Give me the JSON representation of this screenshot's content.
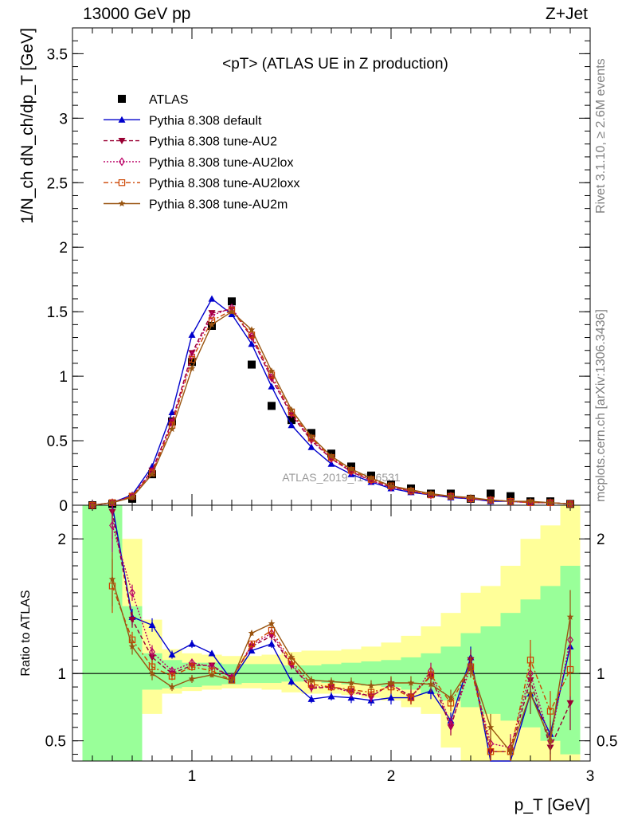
{
  "header": {
    "left": "13000 GeV pp",
    "right": "Z+Jet"
  },
  "side_labels": {
    "rivet": "Rivet 3.1.10, ≥ 2.6M events",
    "mcplots": "mcplots.cern.ch [arXiv:1306.3436]"
  },
  "watermark": "ATLAS_2019_I1736531",
  "chart_data": [
    {
      "type": "scatter",
      "title": "<pT> (ATLAS UE in Z production)",
      "ylabel": "1/N_ch dN_ch/dp_T [GeV]",
      "xlim": [
        0.4,
        3.0
      ],
      "ylim": [
        0,
        3.7
      ],
      "yticks": [
        0,
        0.5,
        1,
        1.5,
        2,
        2.5,
        3,
        3.5
      ],
      "ytick_labels": [
        "0",
        "0.5",
        "1",
        "1.5",
        "2",
        "2.5",
        "3",
        "3.5"
      ],
      "legend_position": "top-left",
      "x": [
        0.5,
        0.6,
        0.7,
        0.8,
        0.9,
        1.0,
        1.1,
        1.2,
        1.3,
        1.4,
        1.5,
        1.6,
        1.7,
        1.8,
        1.9,
        2.0,
        2.1,
        2.2,
        2.3,
        2.4,
        2.5,
        2.6,
        2.7,
        2.8,
        2.9
      ],
      "series": [
        {
          "name": "ATLAS",
          "style": "data",
          "marker": "square",
          "color": "#000000",
          "values": [
            0.0,
            0.01,
            0.05,
            0.24,
            0.65,
            1.11,
            1.39,
            1.58,
            1.09,
            0.77,
            0.66,
            0.56,
            0.4,
            0.3,
            0.23,
            0.16,
            0.13,
            0.09,
            0.09,
            0.05,
            0.09,
            0.07,
            0.03,
            0.03,
            0.01
          ]
        },
        {
          "name": "Pythia 8.308 default",
          "style": "solid",
          "marker": "triangle-up",
          "color": "#0000cc",
          "values": [
            0.0,
            0.02,
            0.08,
            0.3,
            0.72,
            1.32,
            1.6,
            1.48,
            1.25,
            0.92,
            0.62,
            0.45,
            0.32,
            0.24,
            0.18,
            0.13,
            0.1,
            0.08,
            0.06,
            0.05,
            0.03,
            0.03,
            0.02,
            0.02,
            0.01
          ]
        },
        {
          "name": "Pythia 8.308 tune-AU2",
          "style": "dashed",
          "marker": "triangle-down",
          "color": "#990033",
          "values": [
            0.0,
            0.02,
            0.07,
            0.27,
            0.65,
            1.18,
            1.49,
            1.52,
            1.3,
            0.98,
            0.7,
            0.5,
            0.36,
            0.26,
            0.19,
            0.14,
            0.11,
            0.08,
            0.07,
            0.05,
            0.04,
            0.03,
            0.02,
            0.02,
            0.01
          ]
        },
        {
          "name": "Pythia 8.308 tune-AU2lox",
          "style": "dotted",
          "marker": "diamond-open",
          "color": "#bb0066",
          "values": [
            0.0,
            0.02,
            0.07,
            0.26,
            0.64,
            1.16,
            1.47,
            1.53,
            1.31,
            0.99,
            0.71,
            0.51,
            0.36,
            0.26,
            0.19,
            0.14,
            0.11,
            0.08,
            0.07,
            0.05,
            0.04,
            0.03,
            0.02,
            0.02,
            0.01
          ]
        },
        {
          "name": "Pythia 8.308 tune-AU2loxx",
          "style": "dashdot",
          "marker": "square-open",
          "color": "#cc4400",
          "values": [
            0.0,
            0.02,
            0.07,
            0.25,
            0.62,
            1.13,
            1.43,
            1.51,
            1.32,
            1.01,
            0.72,
            0.52,
            0.37,
            0.27,
            0.2,
            0.15,
            0.11,
            0.08,
            0.07,
            0.05,
            0.04,
            0.03,
            0.02,
            0.02,
            0.01
          ]
        },
        {
          "name": "Pythia 8.308 tune-AU2m",
          "style": "solid",
          "marker": "star",
          "color": "#995511",
          "values": [
            0.0,
            0.02,
            0.06,
            0.24,
            0.59,
            1.06,
            1.4,
            1.5,
            1.36,
            1.04,
            0.74,
            0.53,
            0.38,
            0.28,
            0.21,
            0.15,
            0.12,
            0.09,
            0.07,
            0.06,
            0.04,
            0.03,
            0.03,
            0.02,
            0.01
          ]
        }
      ]
    },
    {
      "type": "scatter",
      "title": "",
      "xlabel": "p_T [GeV]",
      "ylabel": "Ratio to ATLAS",
      "xlim": [
        0.4,
        3.0
      ],
      "ylim": [
        0.35,
        2.25
      ],
      "xticks": [
        1,
        2,
        3
      ],
      "xtick_labels": [
        "1",
        "2",
        "3"
      ],
      "yticks": [
        0.5,
        1,
        2
      ],
      "ytick_labels": [
        "0.5",
        "1",
        "2"
      ],
      "reference_line": 1,
      "bands": {
        "edges": [
          0.45,
          0.55,
          0.65,
          0.75,
          0.85,
          0.95,
          1.05,
          1.15,
          1.25,
          1.35,
          1.45,
          1.55,
          1.65,
          1.75,
          1.85,
          1.95,
          2.05,
          2.15,
          2.25,
          2.35,
          2.45,
          2.55,
          2.65,
          2.75,
          2.85,
          2.95
        ],
        "green": [
          [
            0.35,
            2.25
          ],
          [
            0.35,
            2.25
          ],
          [
            0.35,
            1.5
          ],
          [
            0.88,
            1.15
          ],
          [
            0.89,
            1.1
          ],
          [
            0.9,
            1.08
          ],
          [
            0.91,
            1.08
          ],
          [
            0.92,
            1.07
          ],
          [
            0.93,
            1.07
          ],
          [
            0.93,
            1.07
          ],
          [
            0.94,
            1.06
          ],
          [
            0.94,
            1.06
          ],
          [
            0.93,
            1.07
          ],
          [
            0.92,
            1.08
          ],
          [
            0.91,
            1.09
          ],
          [
            0.9,
            1.1
          ],
          [
            0.88,
            1.12
          ],
          [
            0.85,
            1.15
          ],
          [
            0.8,
            1.2
          ],
          [
            0.75,
            1.3
          ],
          [
            0.7,
            1.35
          ],
          [
            0.65,
            1.45
          ],
          [
            0.6,
            1.55
          ],
          [
            0.5,
            1.65
          ],
          [
            0.4,
            1.8
          ]
        ],
        "yellow": [
          [
            0.35,
            2.25
          ],
          [
            0.35,
            2.25
          ],
          [
            0.35,
            2.0
          ],
          [
            0.7,
            1.4
          ],
          [
            0.85,
            1.18
          ],
          [
            0.87,
            1.15
          ],
          [
            0.88,
            1.14
          ],
          [
            0.89,
            1.13
          ],
          [
            0.89,
            1.13
          ],
          [
            0.88,
            1.14
          ],
          [
            0.86,
            1.16
          ],
          [
            0.85,
            1.17
          ],
          [
            0.85,
            1.17
          ],
          [
            0.84,
            1.18
          ],
          [
            0.82,
            1.2
          ],
          [
            0.8,
            1.23
          ],
          [
            0.75,
            1.28
          ],
          [
            0.7,
            1.35
          ],
          [
            0.45,
            1.45
          ],
          [
            0.35,
            1.6
          ],
          [
            0.35,
            1.65
          ],
          [
            0.35,
            1.8
          ],
          [
            0.35,
            2.0
          ],
          [
            0.35,
            2.1
          ],
          [
            0.35,
            2.25
          ]
        ]
      },
      "x": [
        0.6,
        0.7,
        0.8,
        0.9,
        1.0,
        1.1,
        1.2,
        1.3,
        1.4,
        1.5,
        1.6,
        1.7,
        1.8,
        1.9,
        2.0,
        2.1,
        2.2,
        2.3,
        2.4,
        2.5,
        2.6,
        2.7,
        2.8,
        2.9
      ],
      "series": [
        {
          "name": "Pythia 8.308 default",
          "style": "solid",
          "marker": "triangle-up",
          "color": "#0000cc",
          "values": [
            2.3,
            1.42,
            1.36,
            1.14,
            1.22,
            1.15,
            0.95,
            1.17,
            1.22,
            0.94,
            0.81,
            0.83,
            0.82,
            0.8,
            0.82,
            0.82,
            0.87,
            0.65,
            1.12,
            0.3,
            0.3,
            0.85,
            0.55,
            1.2
          ],
          "errors": [
            0.2,
            0.06,
            0.05,
            0.03,
            0.03,
            0.02,
            0.02,
            0.02,
            0.03,
            0.03,
            0.03,
            0.03,
            0.04,
            0.04,
            0.05,
            0.05,
            0.06,
            0.06,
            0.08,
            0.1,
            0.1,
            0.15,
            0.15,
            0.2
          ]
        },
        {
          "name": "Pythia 8.308 tune-AU2",
          "style": "dashed",
          "marker": "triangle-down",
          "color": "#990033",
          "values": [
            2.2,
            1.4,
            1.12,
            1.0,
            1.06,
            1.06,
            0.97,
            1.2,
            1.28,
            1.06,
            0.89,
            0.9,
            0.87,
            0.83,
            0.92,
            0.83,
            0.98,
            0.6,
            1.1,
            0.42,
            0.42,
            0.95,
            0.45,
            0.78
          ],
          "errors": [
            0.2,
            0.06,
            0.05,
            0.03,
            0.03,
            0.02,
            0.02,
            0.02,
            0.03,
            0.03,
            0.03,
            0.03,
            0.04,
            0.04,
            0.05,
            0.05,
            0.06,
            0.06,
            0.08,
            0.1,
            0.1,
            0.15,
            0.15,
            0.2
          ]
        },
        {
          "name": "Pythia 8.308 tune-AU2lox",
          "style": "dotted",
          "marker": "diamond-open",
          "color": "#bb0066",
          "values": [
            2.1,
            1.6,
            1.16,
            1.02,
            1.08,
            1.05,
            0.97,
            1.21,
            1.3,
            1.07,
            0.9,
            0.9,
            0.86,
            0.83,
            0.92,
            0.82,
            1.02,
            0.62,
            1.05,
            0.48,
            0.45,
            1.0,
            0.5,
            1.25
          ],
          "errors": [
            0.2,
            0.06,
            0.05,
            0.03,
            0.03,
            0.02,
            0.02,
            0.02,
            0.03,
            0.03,
            0.03,
            0.03,
            0.04,
            0.04,
            0.05,
            0.05,
            0.06,
            0.06,
            0.08,
            0.1,
            0.1,
            0.15,
            0.15,
            0.2
          ]
        },
        {
          "name": "Pythia 8.308 tune-AU2loxx",
          "style": "dashdot",
          "marker": "square-open",
          "color": "#cc4400",
          "values": [
            1.65,
            1.25,
            1.05,
            0.98,
            1.05,
            1.02,
            0.95,
            1.22,
            1.32,
            1.09,
            0.92,
            0.9,
            0.88,
            0.86,
            0.9,
            0.82,
            0.99,
            0.78,
            1.05,
            0.42,
            0.42,
            1.1,
            0.72,
            1.03
          ],
          "errors": [
            0.2,
            0.06,
            0.05,
            0.03,
            0.03,
            0.02,
            0.02,
            0.02,
            0.03,
            0.03,
            0.03,
            0.03,
            0.04,
            0.04,
            0.05,
            0.05,
            0.06,
            0.06,
            0.08,
            0.1,
            0.1,
            0.15,
            0.15,
            0.2
          ]
        },
        {
          "name": "Pythia 8.308 tune-AU2m",
          "style": "solid",
          "marker": "star",
          "color": "#995511",
          "values": [
            1.7,
            1.2,
            1.0,
            0.9,
            0.96,
            0.99,
            0.95,
            1.3,
            1.37,
            1.12,
            0.95,
            0.94,
            0.93,
            0.91,
            0.93,
            0.93,
            0.92,
            0.82,
            1.05,
            0.6,
            0.42,
            0.85,
            0.5,
            1.42
          ],
          "errors": [
            0.2,
            0.06,
            0.05,
            0.03,
            0.03,
            0.02,
            0.02,
            0.02,
            0.03,
            0.03,
            0.03,
            0.03,
            0.04,
            0.04,
            0.05,
            0.05,
            0.06,
            0.06,
            0.08,
            0.1,
            0.1,
            0.15,
            0.15,
            0.2
          ]
        }
      ]
    }
  ]
}
